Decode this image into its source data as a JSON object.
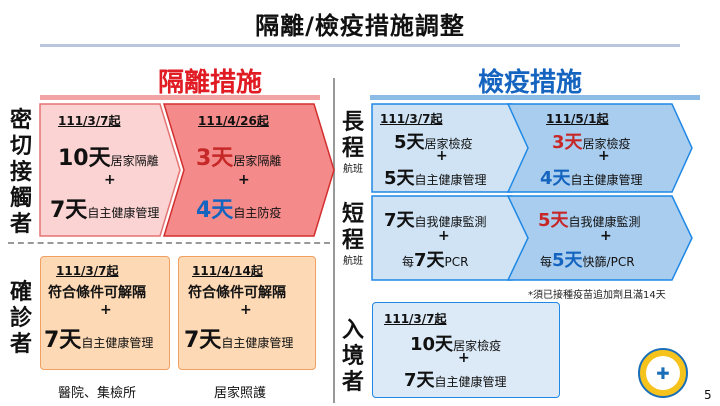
{
  "slide": {
    "title": "隔離/檢疫措施調整",
    "page_number": "5",
    "colors": {
      "isolation_red": "#e01b24",
      "quarantine_blue": "#1565c0"
    },
    "logo_icon": "cdc-seal-icon"
  },
  "isolation": {
    "heading": "隔離措施",
    "close_contacts": {
      "label": "密切接觸者",
      "before": {
        "date": "111/3/7起",
        "line1_num": "10天",
        "line1_text": "居家隔離",
        "plus": "+",
        "line2_num": "7天",
        "line2_text": "自主健康管理"
      },
      "after": {
        "date": "111/4/26起",
        "line1_num": "3天",
        "line1_text": "居家隔離",
        "plus": "+",
        "line2_num": "4天",
        "line2_text": "自主防疫"
      }
    },
    "confirmed": {
      "label": "確診者",
      "hospital": {
        "date": "111/3/7起",
        "line1": "符合條件可解隔",
        "plus": "+",
        "line2_num": "7天",
        "line2_text": "自主健康管理",
        "caption": "醫院、集檢所"
      },
      "home": {
        "date": "111/4/14起",
        "line1": "符合條件可解隔",
        "plus": "+",
        "line2_num": "7天",
        "line2_text": "自主健康管理",
        "caption": "居家照護"
      }
    }
  },
  "quarantine": {
    "heading": "檢疫措施",
    "long_haul": {
      "label": "長程",
      "sublabel": "航班",
      "before": {
        "date": "111/3/7起",
        "line1_num": "5天",
        "line1_text": "居家檢疫",
        "plus": "+",
        "line2_num": "5天",
        "line2_text": "自主健康管理"
      },
      "after": {
        "date": "111/5/1起",
        "line1_num": "3天",
        "line1_text": "居家檢疫",
        "plus": "+",
        "line2_num": "4天",
        "line2_text": "自主健康管理"
      }
    },
    "short_haul": {
      "label": "短程",
      "sublabel": "航班",
      "before": {
        "line1_num": "7天",
        "line1_text": "自我健康監測",
        "plus": "+",
        "line2_prefix": "每",
        "line2_num": "7天",
        "line2_text": "PCR"
      },
      "after": {
        "line1_num": "5天",
        "line1_text": "自我健康監測",
        "plus": "+",
        "line2_prefix": "每",
        "line2_num": "5天",
        "line2_text": "快篩/PCR"
      }
    },
    "note": "*須已接種疫苗追加劑且滿14天",
    "entry": {
      "label": "入境者",
      "date": "111/3/7起",
      "line1_num": "10天",
      "line1_text": "居家檢疫",
      "plus": "+",
      "line2_num": "7天",
      "line2_text": "自主健康管理"
    }
  }
}
